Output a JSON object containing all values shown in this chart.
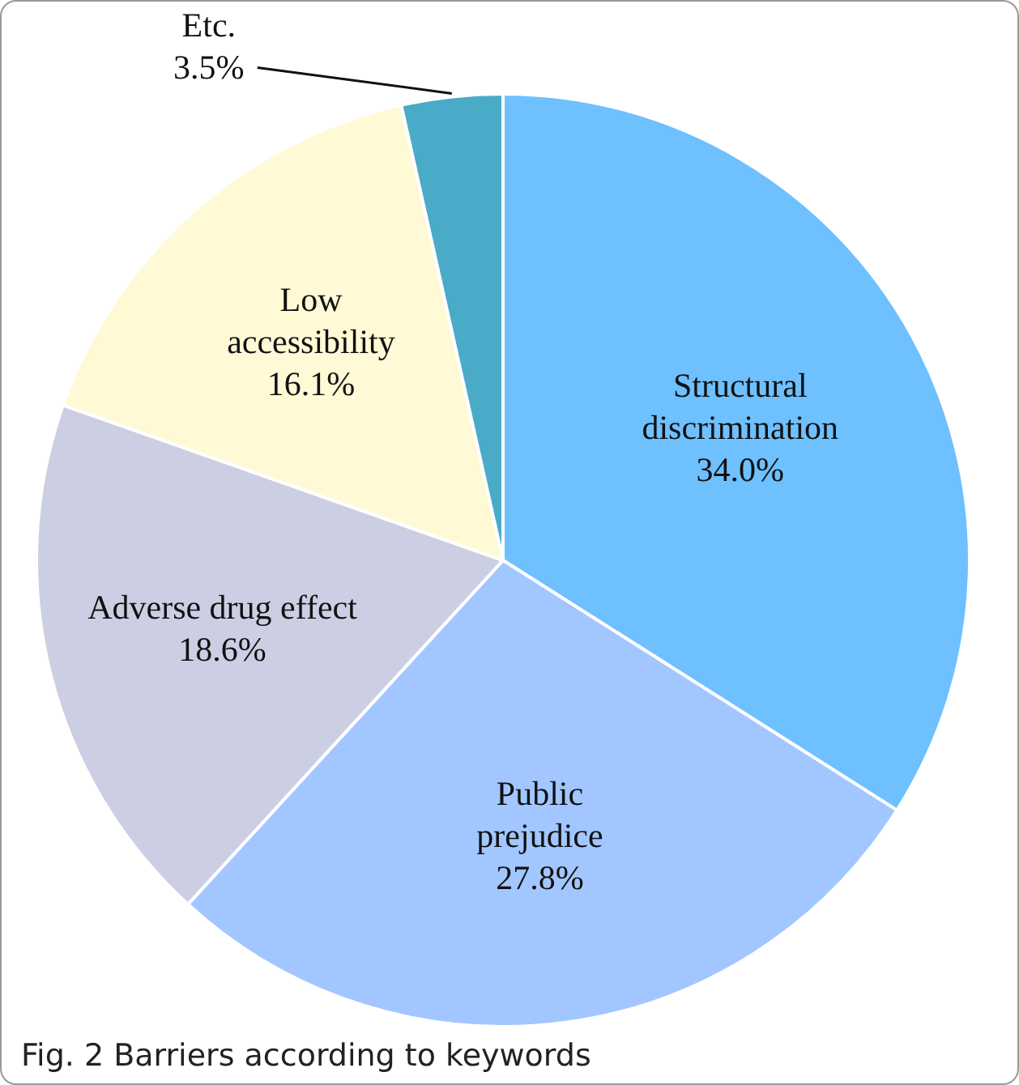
{
  "chart_data": {
    "type": "pie",
    "title": "Fig. 2  Barriers according to keywords",
    "categories": [
      "Structural discrimination",
      "Public prejudice",
      "Adverse drug effect",
      "Low accessibility",
      "Etc."
    ],
    "values": [
      34.0,
      27.8,
      18.6,
      16.1,
      3.5
    ],
    "value_labels": [
      "34.0%",
      "27.8%",
      "18.6%",
      "16.1%",
      "3.5%"
    ],
    "colors": [
      "#6ec0ff",
      "#a2c6ff",
      "#cccfe3",
      "#fff9d5",
      "#4aabc8"
    ],
    "legend": false
  }
}
